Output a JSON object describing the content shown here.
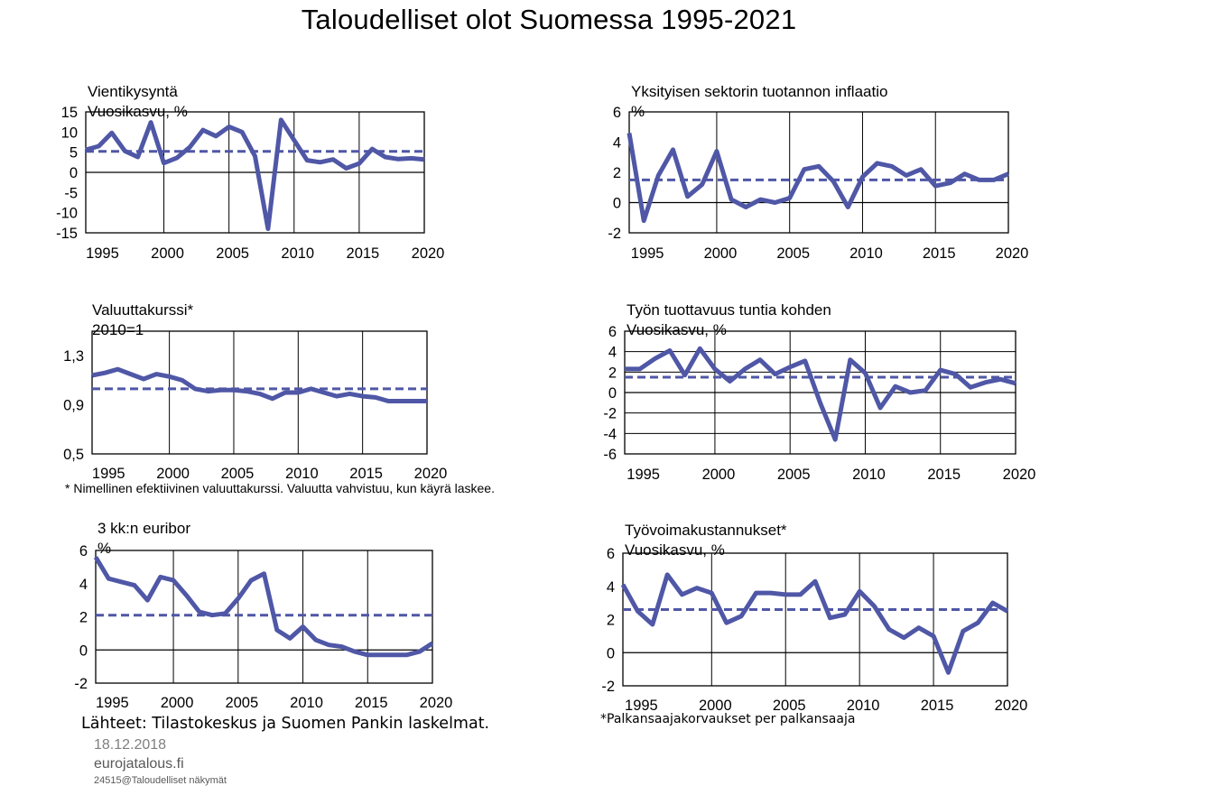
{
  "title": "Taloudelliset olot Suomessa 1995-2021",
  "colors": {
    "series": "#4f57a6",
    "axes": "#000000"
  },
  "chart_data": [
    {
      "type": "line",
      "title": "Vientikysyntä",
      "ylabel": "Vuosikasvu,  %",
      "x": [
        1994,
        1995,
        1996,
        1997,
        1998,
        1999,
        2000,
        2001,
        2002,
        2003,
        2004,
        2005,
        2006,
        2007,
        2008,
        2009,
        2010,
        2011,
        2012,
        2013,
        2014,
        2015,
        2016,
        2017,
        2018,
        2019,
        2020
      ],
      "series": [
        {
          "values": [
            5.6,
            6.5,
            9.8,
            5.3,
            3.8,
            12.4,
            2.3,
            3.6,
            6.3,
            10.5,
            9.0,
            11.3,
            10.0,
            4.0,
            -14.0,
            13.0,
            8.0,
            3.0,
            2.5,
            3.2,
            1.0,
            2.2,
            5.8,
            3.8,
            3.3,
            3.5,
            3.2
          ]
        },
        {
          "values": [
            5.2,
            5.2,
            5.2,
            5.2,
            5.2,
            5.2,
            5.2,
            5.2,
            5.2,
            5.2,
            5.2,
            5.2,
            5.2,
            5.2,
            5.2,
            5.2,
            5.2,
            5.2,
            5.2,
            5.2,
            5.2,
            5.2,
            5.2,
            5.2,
            5.2,
            5.2,
            5.2
          ],
          "dashed": true
        }
      ],
      "ylim": [
        -15,
        15
      ],
      "yticks": [
        "15",
        "10",
        "5",
        "0",
        "-5",
        "-10",
        "-15"
      ],
      "xticks": [
        "1995",
        "2000",
        "2005",
        "2010",
        "2015",
        "2020"
      ],
      "grid": "vertical"
    },
    {
      "type": "line",
      "title": "Yksityisen sektorin tuotannon inflaatio",
      "ylabel": "%",
      "x": [
        1994,
        1995,
        1996,
        1997,
        1998,
        1999,
        2000,
        2001,
        2002,
        2003,
        2004,
        2005,
        2006,
        2007,
        2008,
        2009,
        2010,
        2011,
        2012,
        2013,
        2014,
        2015,
        2016,
        2017,
        2018,
        2019,
        2020
      ],
      "series": [
        {
          "values": [
            4.6,
            -1.2,
            1.8,
            3.5,
            0.4,
            1.2,
            3.4,
            0.2,
            -0.3,
            0.2,
            0.0,
            0.3,
            2.2,
            2.4,
            1.4,
            -0.3,
            1.7,
            2.6,
            2.4,
            1.8,
            2.2,
            1.1,
            1.3,
            1.9,
            1.5,
            1.5,
            1.9
          ]
        },
        {
          "values": [
            1.5,
            1.5,
            1.5,
            1.5,
            1.5,
            1.5,
            1.5,
            1.5,
            1.5,
            1.5,
            1.5,
            1.5,
            1.5,
            1.5,
            1.5,
            1.5,
            1.5,
            1.5,
            1.5,
            1.5,
            1.5,
            1.5,
            1.5,
            1.5,
            1.5,
            1.5,
            1.5
          ],
          "dashed": true
        }
      ],
      "ylim": [
        -2,
        6
      ],
      "yticks": [
        "6",
        "4",
        "2",
        "0",
        "-2"
      ],
      "xticks": [
        "1995",
        "2000",
        "2005",
        "2010",
        "2015",
        "2020"
      ],
      "grid": "vertical"
    },
    {
      "type": "line",
      "title": "Valuuttakurssi*",
      "ylabel": "2010=1",
      "x": [
        1994,
        1995,
        1996,
        1997,
        1998,
        1999,
        2000,
        2001,
        2002,
        2003,
        2004,
        2005,
        2006,
        2007,
        2008,
        2009,
        2010,
        2011,
        2012,
        2013,
        2014,
        2015,
        2016,
        2017,
        2018,
        2019,
        2020
      ],
      "series": [
        {
          "values": [
            1.14,
            1.16,
            1.19,
            1.15,
            1.11,
            1.15,
            1.13,
            1.1,
            1.03,
            1.01,
            1.02,
            1.02,
            1.01,
            0.99,
            0.95,
            1.0,
            1.0,
            1.03,
            1.0,
            0.97,
            0.99,
            0.97,
            0.96,
            0.93,
            0.93,
            0.93,
            0.93
          ]
        },
        {
          "values": [
            1.03,
            1.03,
            1.03,
            1.03,
            1.03,
            1.03,
            1.03,
            1.03,
            1.03,
            1.03,
            1.03,
            1.03,
            1.03,
            1.03,
            1.03,
            1.03,
            1.03,
            1.03,
            1.03,
            1.03,
            1.03,
            1.03,
            1.03,
            1.03,
            1.03,
            1.03,
            1.03
          ],
          "dashed": true
        }
      ],
      "ylim": [
        0.5,
        1.5
      ],
      "yticks": [
        "1,3",
        "0,9",
        "0,5"
      ],
      "xticks": [
        "1995",
        "2000",
        "2005",
        "2010",
        "2015",
        "2020"
      ],
      "grid": "vertical",
      "footnote": "* Nimellinen efektiivinen  valuuttakurssi. Valuutta vahvistuu, kun käyrä laskee."
    },
    {
      "type": "line",
      "title": "Työn tuottavuus tuntia kohden",
      "ylabel": "Vuosikasvu,  %",
      "x": [
        1994,
        1995,
        1996,
        1997,
        1998,
        1999,
        2000,
        2001,
        2002,
        2003,
        2004,
        2005,
        2006,
        2007,
        2008,
        2009,
        2010,
        2011,
        2012,
        2013,
        2014,
        2015,
        2016,
        2017,
        2018,
        2019,
        2020
      ],
      "series": [
        {
          "values": [
            2.3,
            2.3,
            3.3,
            4.1,
            1.7,
            4.3,
            2.3,
            1.1,
            2.3,
            3.2,
            1.8,
            2.5,
            3.1,
            -1.0,
            -4.6,
            3.2,
            1.9,
            -1.5,
            0.6,
            0.0,
            0.2,
            2.2,
            1.8,
            0.5,
            1.0,
            1.3,
            0.9
          ]
        },
        {
          "values": [
            1.5,
            1.5,
            1.5,
            1.5,
            1.5,
            1.5,
            1.5,
            1.5,
            1.5,
            1.5,
            1.5,
            1.5,
            1.5,
            1.5,
            1.5,
            1.5,
            1.5,
            1.5,
            1.5,
            1.5,
            1.5,
            1.5,
            1.5,
            1.5,
            1.5,
            1.5,
            1.5
          ],
          "dashed": true
        }
      ],
      "ylim": [
        -6,
        6
      ],
      "yticks": [
        "6",
        "4",
        "2",
        "0",
        "-2",
        "-4",
        "-6"
      ],
      "xticks": [
        "1995",
        "2000",
        "2005",
        "2010",
        "2015",
        "2020"
      ],
      "grid": "both"
    },
    {
      "type": "line",
      "title": "3 kk:n euribor",
      "ylabel": "%",
      "x": [
        1994,
        1995,
        1996,
        1997,
        1998,
        1999,
        2000,
        2001,
        2002,
        2003,
        2004,
        2005,
        2006,
        2007,
        2008,
        2009,
        2010,
        2011,
        2012,
        2013,
        2014,
        2015,
        2016,
        2017,
        2018,
        2019,
        2020
      ],
      "series": [
        {
          "values": [
            5.6,
            4.3,
            4.1,
            3.9,
            3.0,
            4.4,
            4.2,
            3.3,
            2.3,
            2.1,
            2.2,
            3.1,
            4.2,
            4.6,
            1.2,
            0.7,
            1.4,
            0.6,
            0.3,
            0.2,
            -0.1,
            -0.3,
            -0.3,
            -0.3,
            -0.3,
            -0.1,
            0.4
          ]
        },
        {
          "values": [
            2.1,
            2.1,
            2.1,
            2.1,
            2.1,
            2.1,
            2.1,
            2.1,
            2.1,
            2.1,
            2.1,
            2.1,
            2.1,
            2.1,
            2.1,
            2.1,
            2.1,
            2.1,
            2.1,
            2.1,
            2.1,
            2.1,
            2.1,
            2.1,
            2.1,
            2.1,
            2.1
          ],
          "dashed": true
        }
      ],
      "ylim": [
        -2,
        6
      ],
      "yticks": [
        "6",
        "4",
        "2",
        "0",
        "-2"
      ],
      "xticks": [
        "1995",
        "2000",
        "2005",
        "2010",
        "2015",
        "2020"
      ],
      "grid": "vertical"
    },
    {
      "type": "line",
      "title": "Työvoimakustannukset*",
      "ylabel": "Vuosikasvu,  %",
      "x": [
        1994,
        1995,
        1996,
        1997,
        1998,
        1999,
        2000,
        2001,
        2002,
        2003,
        2004,
        2005,
        2006,
        2007,
        2008,
        2009,
        2010,
        2011,
        2012,
        2013,
        2014,
        2015,
        2016,
        2017,
        2018,
        2019,
        2020
      ],
      "series": [
        {
          "values": [
            4.1,
            2.5,
            1.7,
            4.7,
            3.5,
            3.9,
            3.6,
            1.8,
            2.2,
            3.6,
            3.6,
            3.5,
            3.5,
            4.3,
            2.1,
            2.3,
            3.7,
            2.8,
            1.4,
            0.9,
            1.5,
            1.0,
            -1.2,
            1.3,
            1.8,
            3.0,
            2.5
          ]
        },
        {
          "values": [
            2.6,
            2.6,
            2.6,
            2.6,
            2.6,
            2.6,
            2.6,
            2.6,
            2.6,
            2.6,
            2.6,
            2.6,
            2.6,
            2.6,
            2.6,
            2.6,
            2.6,
            2.6,
            2.6,
            2.6,
            2.6,
            2.6,
            2.6,
            2.6,
            2.6,
            2.6,
            2.6
          ],
          "dashed": true
        }
      ],
      "ylim": [
        -2,
        6
      ],
      "yticks": [
        "6",
        "4",
        "2",
        "0",
        "-2"
      ],
      "xticks": [
        "1995",
        "2000",
        "2005",
        "2010",
        "2015",
        "2020"
      ],
      "grid": "vertical",
      "footnote": "*Palkansaajakorvaukset per palkansaaja"
    }
  ],
  "footer": {
    "sources": "Lähteet: Tilastokeskus ja Suomen Pankin laskelmat.",
    "date": "18.12.2018",
    "site": "eurojatalous.fi",
    "ref": "24515@Taloudelliset näkymät"
  }
}
